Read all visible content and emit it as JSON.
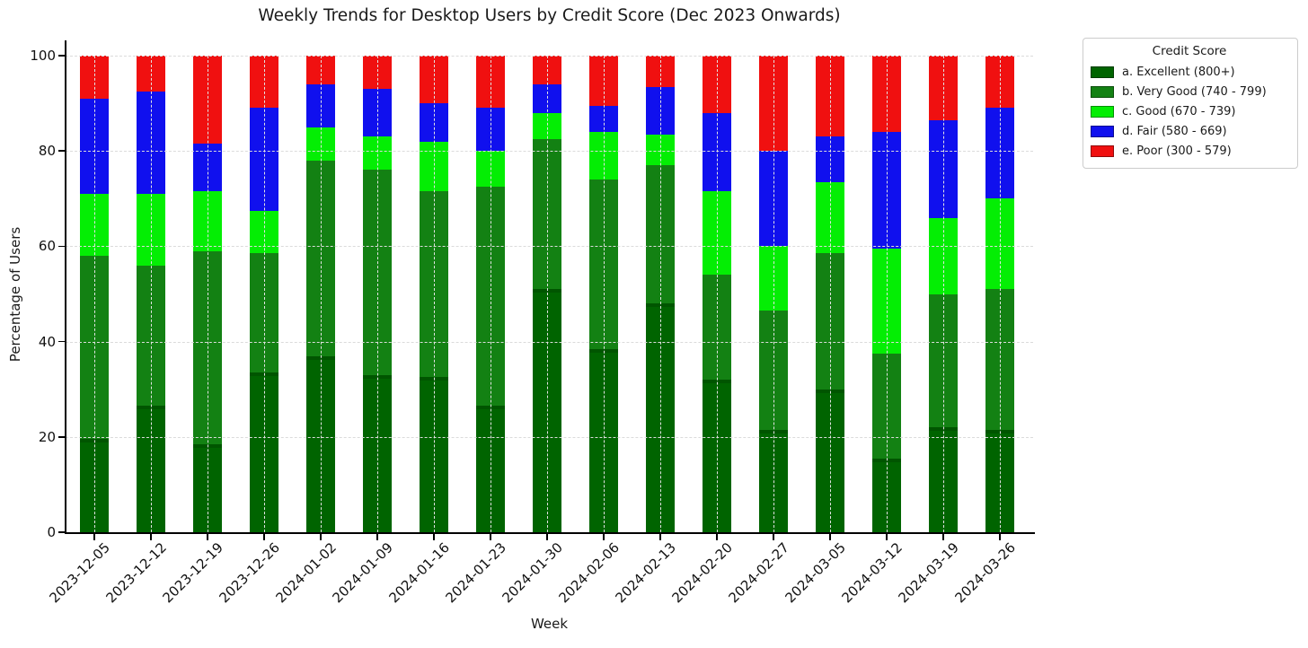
{
  "chart_data": {
    "type": "bar",
    "stacked": true,
    "title": "Weekly Trends for Desktop Users by Credit Score (Dec 2023 Onwards)",
    "xlabel": "Week",
    "ylabel": "Percentage of Users",
    "ylim": [
      0,
      100
    ],
    "yticks": [
      0,
      20,
      40,
      60,
      80,
      100
    ],
    "grid": "dashed-light-gray",
    "legend_title": "Credit Score",
    "legend_position": "outside-upper-right",
    "categories": [
      "2023-12-05",
      "2023-12-12",
      "2023-12-19",
      "2023-12-26",
      "2024-01-02",
      "2024-01-09",
      "2024-01-16",
      "2024-01-23",
      "2024-01-30",
      "2024-02-06",
      "2024-02-13",
      "2024-02-20",
      "2024-02-27",
      "2024-03-05",
      "2024-03-12",
      "2024-03-19",
      "2024-03-26"
    ],
    "series": [
      {
        "name": "a. Excellent (800+)",
        "color": "#006400",
        "values": [
          19.5,
          26.5,
          18.5,
          33.5,
          37.0,
          33.0,
          32.5,
          26.5,
          51.0,
          38.5,
          48.0,
          32.0,
          21.5,
          30.0,
          15.5,
          22.0,
          21.5
        ]
      },
      {
        "name": "b. Very Good (740 - 799)",
        "color": "#138113",
        "values": [
          38.5,
          29.5,
          40.5,
          25.0,
          41.0,
          43.0,
          39.0,
          46.0,
          31.5,
          35.5,
          29.0,
          22.0,
          25.0,
          28.5,
          22.0,
          28.0,
          29.5
        ]
      },
      {
        "name": "c. Good (670 - 739)",
        "color": "#04ee04",
        "values": [
          13.0,
          15.0,
          12.5,
          9.0,
          7.0,
          7.0,
          10.5,
          7.5,
          5.5,
          10.0,
          6.5,
          17.5,
          13.5,
          15.0,
          22.0,
          16.0,
          19.0
        ]
      },
      {
        "name": "d. Fair (580 - 669)",
        "color": "#1010ee",
        "values": [
          20.0,
          21.5,
          10.0,
          21.5,
          9.0,
          10.0,
          8.0,
          9.0,
          6.0,
          5.5,
          10.0,
          16.5,
          20.0,
          9.5,
          24.5,
          20.5,
          19.0
        ]
      },
      {
        "name": "e. Poor (300 - 579)",
        "color": "#f01010",
        "values": [
          9.0,
          7.5,
          18.5,
          11.0,
          6.0,
          7.0,
          10.0,
          11.0,
          6.0,
          10.5,
          6.5,
          12.0,
          20.0,
          17.0,
          16.0,
          13.5,
          11.0
        ]
      }
    ]
  }
}
